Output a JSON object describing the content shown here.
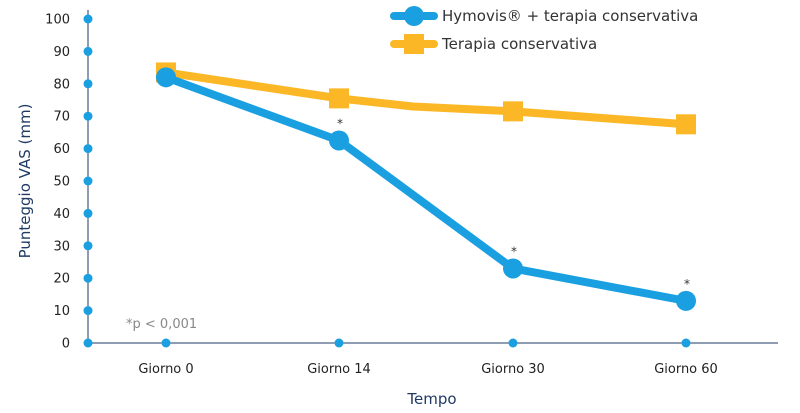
{
  "chart_data": {
    "type": "line",
    "title": "",
    "xlabel": "Tempo",
    "ylabel": "Punteggio VAS (mm)",
    "categories": [
      "Giorno 0",
      "Giorno 14",
      "Giorno 30",
      "Giorno 60"
    ],
    "x": [
      0,
      14,
      30,
      60
    ],
    "ylim": [
      0,
      100
    ],
    "yticks": [
      0,
      10,
      20,
      30,
      40,
      50,
      60,
      70,
      80,
      90,
      100
    ],
    "grid": false,
    "legend": "top-center",
    "series": [
      {
        "name": "Hymovis® + terapia conservativa",
        "marker": "circle",
        "color": "#1a9fe0",
        "x": [
          0,
          14,
          30,
          60
        ],
        "values": [
          82,
          62.5,
          23,
          13
        ],
        "significance": [
          "",
          "*",
          "*",
          "*"
        ]
      },
      {
        "name": "Terapia conservativa",
        "marker": "square",
        "color": "#fbb725",
        "x": [
          0,
          14,
          22,
          30,
          60
        ],
        "values": [
          83.5,
          75.5,
          73,
          71.5,
          67.5
        ]
      }
    ],
    "annotation": "*p < 0,001",
    "axis_color": "#1f3b64",
    "tick_dot_color": "#1a9fe0"
  }
}
